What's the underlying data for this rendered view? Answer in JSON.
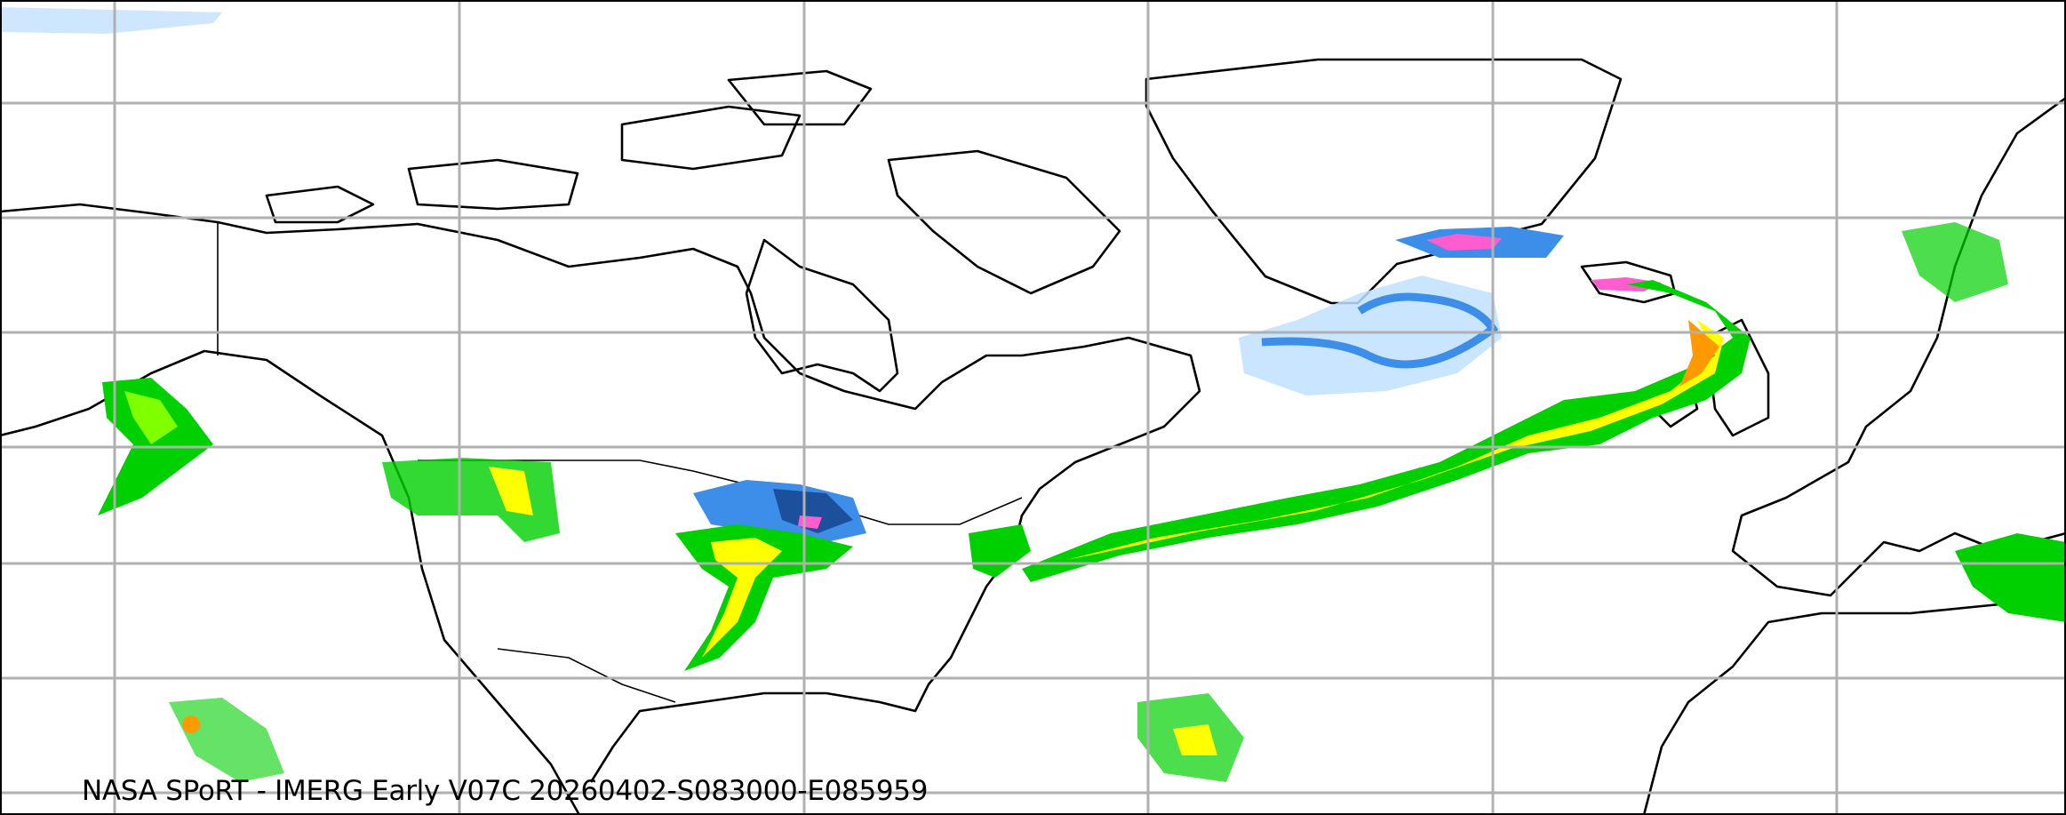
{
  "caption": "NASA SPoRT - IMERG Early V07C 20260402-S083000-E085959",
  "colors": {
    "snow_light": "#bfe0ff",
    "snow_medium": "#3d8ee8",
    "snow_heavy": "#1c4f9c",
    "snow_extreme": "#ff5ccf",
    "rain_dark": "#006400",
    "rain_light": "#00d000",
    "rain_lime": "#80ff00",
    "rain_yellow": "#ffff00",
    "rain_orange": "#ff9900",
    "rain_red": "#ff3300",
    "gridline": "#b0b0b0",
    "coastline": "#000000"
  },
  "map": {
    "projection": "plate-carree",
    "gridlines": true
  }
}
